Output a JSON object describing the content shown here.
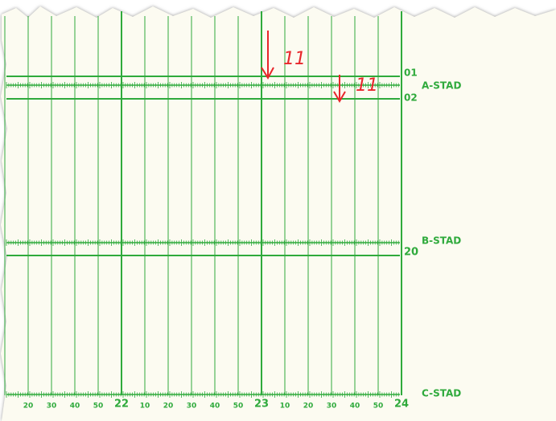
{
  "rows": [
    {
      "label": "01"
    },
    {
      "label": "A-STAD"
    },
    {
      "label": "02"
    },
    {
      "label": "B-STAD"
    },
    {
      "label": "20"
    },
    {
      "label": "C-STAD"
    }
  ],
  "time_labels": [
    "20",
    "30",
    "40",
    "50",
    "22",
    "10",
    "20",
    "30",
    "40",
    "50",
    "23",
    "10",
    "20",
    "30",
    "40",
    "50",
    "24"
  ],
  "annotations": [
    {
      "label": "11"
    },
    {
      "label": "11"
    }
  ]
}
